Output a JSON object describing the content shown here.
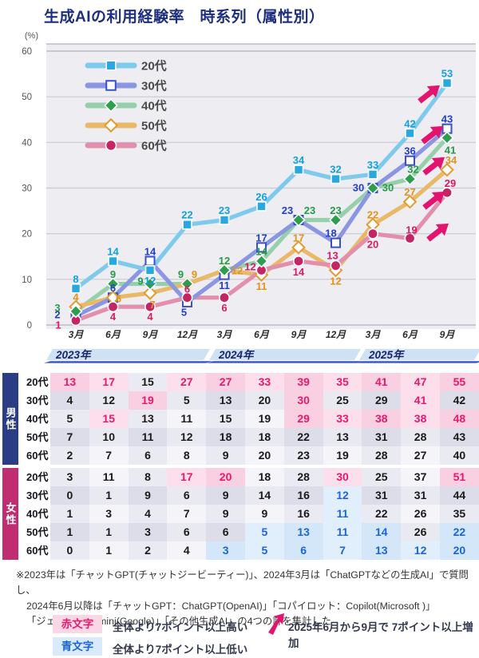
{
  "title": "生成AIの利用経験率　時系列（属性別）",
  "chart_data": {
    "type": "line",
    "unit_label": "(%)",
    "ylim": [
      0,
      60
    ],
    "yticks": [
      60,
      50,
      40,
      30,
      20,
      10,
      0
    ],
    "grid": true,
    "legend_position": "top-left-inside",
    "x": [
      "3月",
      "6月",
      "9月",
      "12月",
      "3月",
      "6月",
      "9月",
      "12月",
      "3月",
      "6月",
      "9月"
    ],
    "year_bands": [
      {
        "label": "2023年",
        "from": 0,
        "to": 3
      },
      {
        "label": "2024年",
        "from": 4,
        "to": 7
      },
      {
        "label": "2025年",
        "from": 8,
        "to": 10
      }
    ],
    "series": [
      {
        "name": "20代",
        "marker": "square",
        "filled": true,
        "line_color": "#7ecaec",
        "marker_color": "#28a7e1",
        "label_color": "#14a0de",
        "values": [
          8,
          14,
          12,
          22,
          23,
          26,
          34,
          32,
          33,
          42,
          53
        ]
      },
      {
        "name": "30代",
        "marker": "square",
        "filled": false,
        "line_color": "#8b96e2",
        "marker_color": "#3a50c8",
        "label_color": "#2340c6",
        "values": [
          2,
          6,
          14,
          5,
          11,
          17,
          23,
          18,
          30,
          36,
          43
        ]
      },
      {
        "name": "40代",
        "marker": "diamond",
        "filled": true,
        "line_color": "#96d0aa",
        "marker_color": "#2d9e4e",
        "label_color": "#279b47",
        "values": [
          3,
          9,
          9,
          9,
          12,
          14,
          23,
          23,
          30,
          32,
          41
        ]
      },
      {
        "name": "50代",
        "marker": "diamond",
        "filled": false,
        "line_color": "#eab968",
        "marker_color": "#e29b2e",
        "label_color": "#e0941b",
        "values": [
          4,
          6,
          7,
          9,
          12,
          11,
          17,
          12,
          22,
          27,
          34
        ]
      },
      {
        "name": "60代",
        "marker": "circle",
        "filled": true,
        "line_color": "#e28fab",
        "marker_color": "#c32565",
        "label_color": "#d31e63",
        "values": [
          1,
          4,
          4,
          6,
          6,
          12,
          14,
          13,
          20,
          19,
          29
        ]
      }
    ],
    "increase_arrows": {
      "color": "#e3146e",
      "applies_to": [
        "20代",
        "30代",
        "40代",
        "50代",
        "60代"
      ],
      "meaning": "2025年6月から9月で 7ポイント以上増加"
    }
  },
  "table": {
    "columns": [
      "2023/3月",
      "2023/6月",
      "2023/9月",
      "2023/12月",
      "2024/3月",
      "2024/6月",
      "2024/9月",
      "2024/12月",
      "2025/3月",
      "2025/6月",
      "2025/9月"
    ],
    "groups": [
      {
        "label": "男性",
        "header_color": "#2b3d85",
        "rows": [
          {
            "label": "20代",
            "values": [
              13,
              17,
              15,
              27,
              27,
              33,
              39,
              35,
              41,
              47,
              55
            ],
            "marks": [
              "r",
              "r",
              "",
              "r",
              "r",
              "r",
              "r",
              "r",
              "r",
              "r",
              "r"
            ]
          },
          {
            "label": "30代",
            "values": [
              4,
              12,
              19,
              5,
              13,
              20,
              30,
              25,
              29,
              41,
              42
            ],
            "marks": [
              "",
              "",
              "r",
              "",
              "",
              "",
              "r",
              "",
              "",
              "r",
              ""
            ]
          },
          {
            "label": "40代",
            "values": [
              5,
              15,
              13,
              11,
              15,
              19,
              29,
              33,
              38,
              38,
              48
            ],
            "marks": [
              "",
              "r",
              "",
              "",
              "",
              "",
              "r",
              "r",
              "r",
              "r",
              "r"
            ]
          },
          {
            "label": "50代",
            "values": [
              7,
              10,
              11,
              12,
              18,
              18,
              22,
              13,
              31,
              28,
              43
            ],
            "marks": [
              "",
              "",
              "",
              "",
              "",
              "",
              "",
              "",
              "",
              "",
              ""
            ]
          },
          {
            "label": "60代",
            "values": [
              2,
              7,
              6,
              8,
              9,
              20,
              23,
              19,
              28,
              27,
              40
            ],
            "marks": [
              "",
              "",
              "",
              "",
              "",
              "",
              "",
              "",
              "",
              "",
              ""
            ]
          }
        ]
      },
      {
        "label": "女性",
        "header_color": "#c02d70",
        "rows": [
          {
            "label": "20代",
            "values": [
              3,
              11,
              8,
              17,
              20,
              18,
              28,
              30,
              25,
              37,
              51
            ],
            "marks": [
              "",
              "",
              "",
              "r",
              "r",
              "",
              "",
              "r",
              "",
              "",
              "r"
            ]
          },
          {
            "label": "30代",
            "values": [
              0,
              1,
              9,
              6,
              9,
              14,
              16,
              12,
              31,
              31,
              44
            ],
            "marks": [
              "",
              "",
              "",
              "",
              "",
              "",
              "",
              "b",
              "",
              "",
              ""
            ]
          },
          {
            "label": "40代",
            "values": [
              1,
              3,
              4,
              7,
              9,
              9,
              16,
              11,
              22,
              26,
              35
            ],
            "marks": [
              "",
              "",
              "",
              "",
              "",
              "",
              "",
              "b",
              "",
              "",
              ""
            ]
          },
          {
            "label": "50代",
            "values": [
              1,
              1,
              3,
              6,
              6,
              5,
              13,
              11,
              14,
              26,
              22
            ],
            "marks": [
              "",
              "",
              "",
              "",
              "",
              "b",
              "b",
              "b",
              "b",
              "",
              "b"
            ]
          },
          {
            "label": "60代",
            "values": [
              0,
              1,
              2,
              4,
              3,
              5,
              6,
              7,
              13,
              12,
              20
            ],
            "marks": [
              "",
              "",
              "",
              "",
              "b",
              "b",
              "b",
              "b",
              "b",
              "b",
              "b"
            ]
          }
        ]
      }
    ],
    "highlight_colors": {
      "red_text": "#e31a6e",
      "red_bg": "#fbd7e6",
      "blue_text": "#1b64d8",
      "blue_bg": "#d9eafb"
    }
  },
  "footnote_lines": [
    "※2023年は「チャットGPT(チャットジービーティー)」、2024年3月は「ChatGPTなどの生成AI」で質問し、",
    "2024年6月以降は「チャットGPT：ChatGPT(OpenAI)」「コパイロット：Copilot(Microsoft )」",
    "「ジェミニ：Gemini(Google)」「その他生成AI」の4つの計を集計した"
  ],
  "notes": {
    "red_box_label": "赤文字",
    "red_note": "全体より7ポイント以上高い",
    "blue_box_label": "青文字",
    "blue_note": "全体より7ポイント以上低い",
    "arrow_note": "2025年6月から9月で 7ポイント以上増加"
  }
}
